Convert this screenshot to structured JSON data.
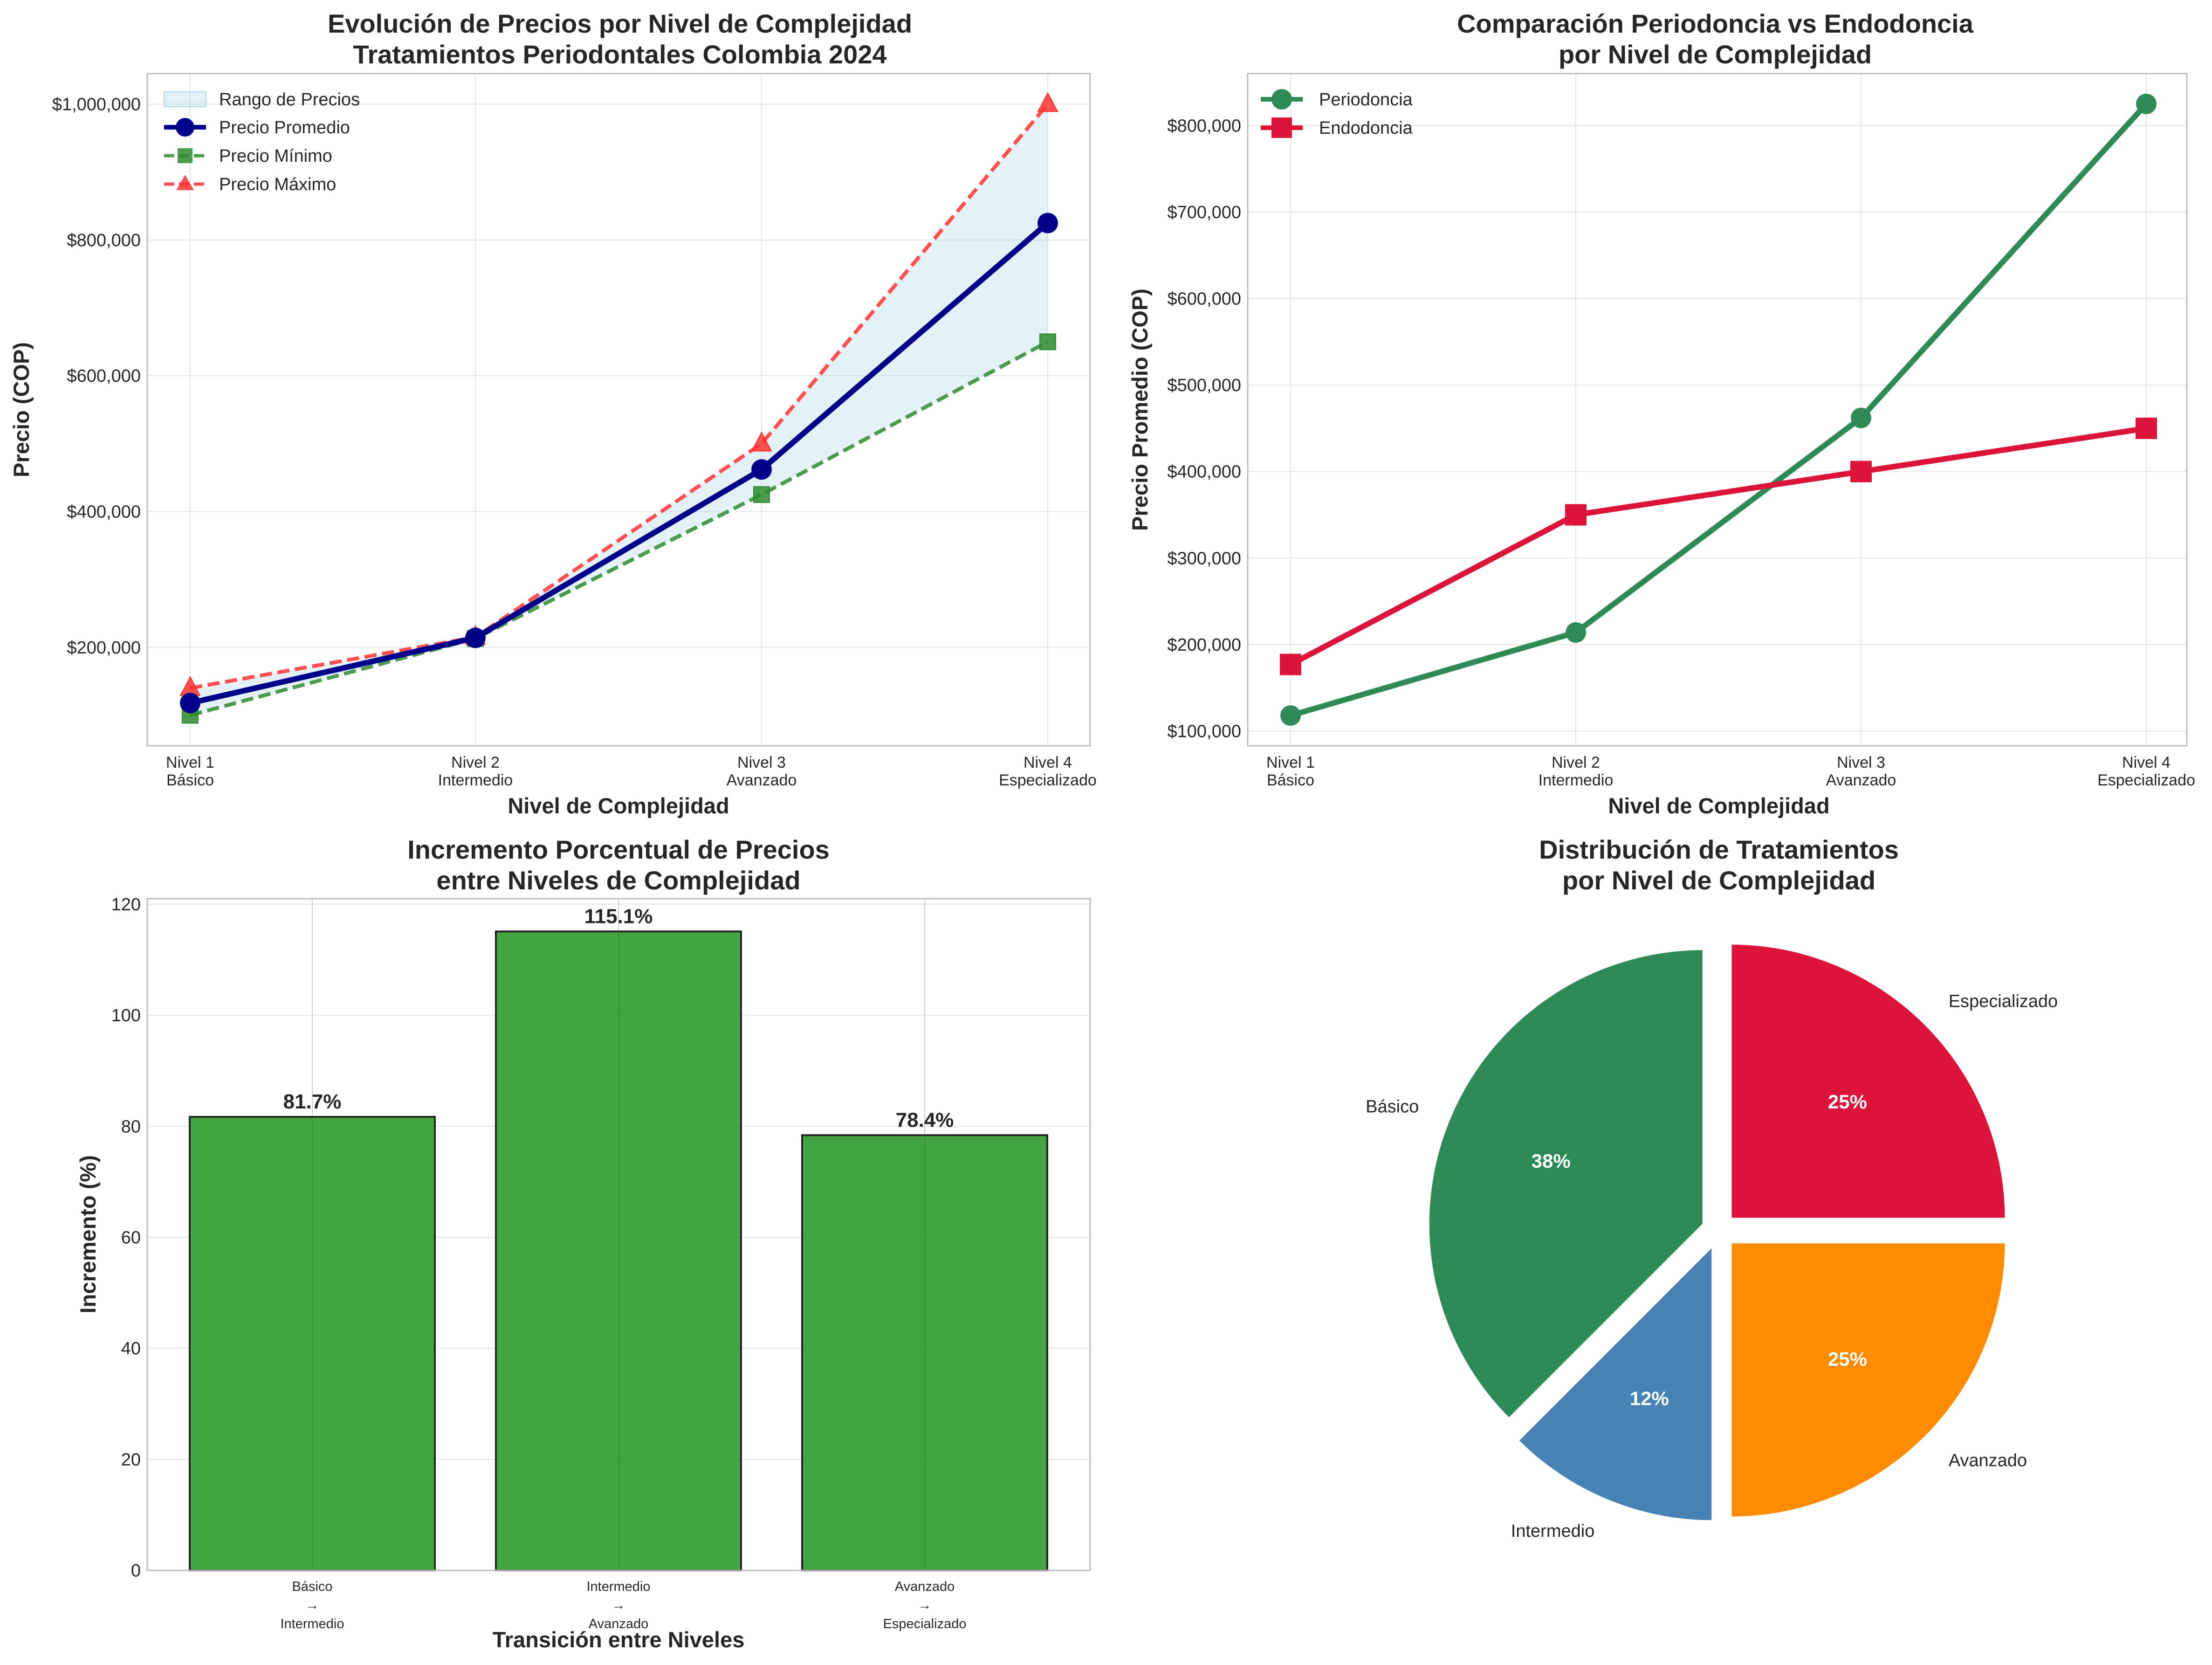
{
  "colors": {
    "avg": "#00008b",
    "min": "#2e8b2e",
    "max": "#ff3333",
    "range": "#add8e6",
    "perio": "#2e8b57",
    "endo": "#dc143c",
    "bar": "#2e9b2e",
    "pie": [
      "#dc143c",
      "#2e8b57",
      "#4682b4",
      "#ff8c00"
    ]
  },
  "chart_data": [
    {
      "type": "line",
      "title": [
        "Evolución de Precios por Nivel de Complejidad",
        "Tratamientos Periodontales Colombia 2024"
      ],
      "xlabel": "Nivel de Complejidad",
      "ylabel": "Precio (COP)",
      "categories": [
        [
          "Nivel 1",
          "Básico"
        ],
        [
          "Nivel 2",
          "Intermedio"
        ],
        [
          "Nivel 3",
          "Avanzado"
        ],
        [
          "Nivel 4",
          "Especializado"
        ]
      ],
      "ylim": [
        55000,
        1045000
      ],
      "yticks": [
        200000,
        400000,
        600000,
        800000,
        1000000
      ],
      "ytick_labels": [
        "$200,000",
        "$400,000",
        "$600,000",
        "$800,000",
        "$1,000,000"
      ],
      "range_label": "Rango de Precios",
      "series": [
        {
          "name": "Precio Promedio",
          "values": [
            118000,
            214000,
            462000,
            825000
          ],
          "marker": "circle",
          "style": "solid"
        },
        {
          "name": "Precio Mínimo",
          "values": [
            100000,
            213000,
            425000,
            650000
          ],
          "marker": "square",
          "style": "dashed"
        },
        {
          "name": "Precio Máximo",
          "values": [
            140000,
            215000,
            500000,
            1000000
          ],
          "marker": "triangle",
          "style": "dashed"
        }
      ]
    },
    {
      "type": "line",
      "title": [
        "Comparación Periodoncia vs Endodoncia",
        "por Nivel de Complejidad"
      ],
      "xlabel": "Nivel de Complejidad",
      "ylabel": "Precio Promedio (COP)",
      "categories": [
        [
          "Nivel 1",
          "Básico"
        ],
        [
          "Nivel 2",
          "Intermedio"
        ],
        [
          "Nivel 3",
          "Avanzado"
        ],
        [
          "Nivel 4",
          "Especializado"
        ]
      ],
      "ylim": [
        83000,
        860000
      ],
      "yticks": [
        100000,
        200000,
        300000,
        400000,
        500000,
        600000,
        700000,
        800000
      ],
      "ytick_labels": [
        "$100,000",
        "$200,000",
        "$300,000",
        "$400,000",
        "$500,000",
        "$600,000",
        "$700,000",
        "$800,000"
      ],
      "series": [
        {
          "name": "Periodoncia",
          "values": [
            118000,
            214000,
            462000,
            825000
          ],
          "marker": "circle"
        },
        {
          "name": "Endodoncia",
          "values": [
            177000,
            350000,
            400000,
            450000
          ],
          "marker": "square"
        }
      ]
    },
    {
      "type": "bar",
      "title": [
        "Incremento Porcentual de Precios",
        "entre Niveles de Complejidad"
      ],
      "xlabel": "Transición entre Niveles",
      "ylabel": "Incremento (%)",
      "categories": [
        [
          "Básico",
          "→",
          "Intermedio"
        ],
        [
          "Intermedio",
          "→",
          "Avanzado"
        ],
        [
          "Avanzado",
          "→",
          "Especializado"
        ]
      ],
      "values": [
        81.7,
        115.1,
        78.4
      ],
      "value_labels": [
        "81.7%",
        "115.1%",
        "78.4%"
      ],
      "ylim": [
        0,
        121
      ],
      "yticks": [
        0,
        20,
        40,
        60,
        80,
        100,
        120
      ],
      "ytick_labels": [
        "0",
        "20",
        "40",
        "60",
        "80",
        "100",
        "120"
      ]
    },
    {
      "type": "pie",
      "title": [
        "Distribución de Tratamientos",
        "por Nivel de Complejidad"
      ],
      "labels": [
        "Especializado",
        "Básico",
        "Intermedio",
        "Avanzado"
      ],
      "values": [
        2,
        3,
        1,
        2
      ],
      "pct_labels": [
        "25%",
        "38%",
        "12%",
        "25%"
      ]
    }
  ]
}
